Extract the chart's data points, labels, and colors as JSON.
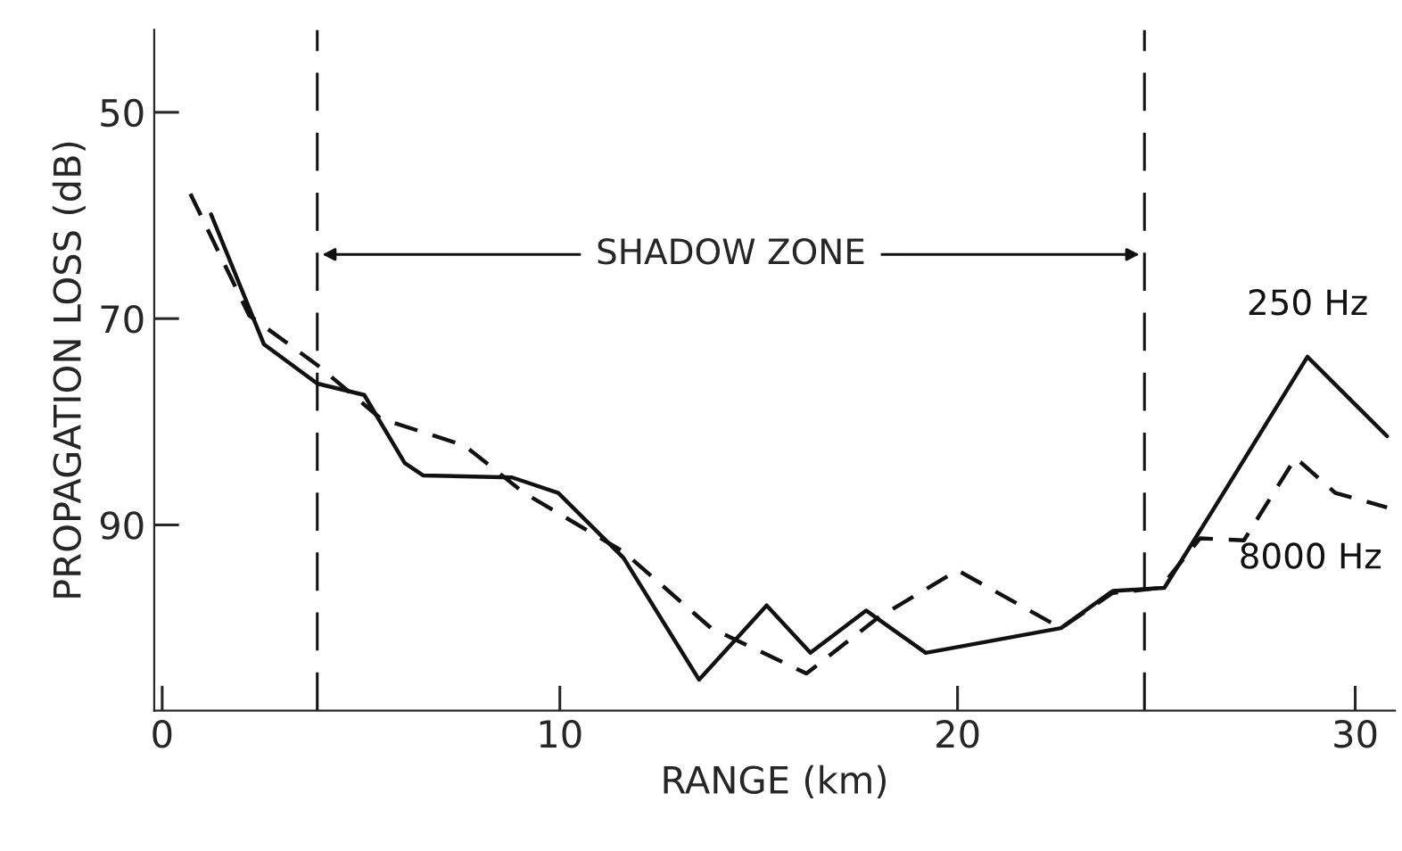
{
  "chart_data": {
    "type": "line",
    "xlabel": "RANGE (km)",
    "ylabel": "PROPAGATION LOSS (dB)",
    "xlim": [
      -0.2,
      31
    ],
    "xticks": [
      0,
      10,
      20,
      30
    ],
    "ylim": [
      108,
      42
    ],
    "yticks": [
      50,
      70,
      90
    ],
    "grid": false,
    "legend": false,
    "marker": "none",
    "series": [
      {
        "name": "250 Hz",
        "color": "#111111",
        "line_style": "solid",
        "x": [
          1.23,
          2.56,
          3.9,
          5.08,
          6.1,
          6.56,
          8.8,
          9.96,
          11.6,
          13.5,
          15.2,
          16.3,
          17.7,
          19.2,
          22.6,
          23.9,
          25.2,
          26.4,
          28.8,
          30.8
        ],
        "values": [
          59.9,
          72.5,
          76.3,
          77.4,
          84.0,
          85.2,
          85.4,
          86.9,
          93.2,
          105.0,
          97.8,
          102.4,
          98.3,
          102.4,
          100.0,
          96.4,
          96.1,
          88.7,
          73.7,
          81.4
        ]
      },
      {
        "name": "8000 Hz",
        "color": "#111111",
        "line_style": "dashed",
        "x": [
          0.71,
          2.19,
          3.9,
          5.5,
          7.6,
          9.1,
          11.6,
          13.8,
          16.2,
          18.0,
          20.0,
          22.6,
          23.9,
          25.1,
          26.1,
          27.2,
          28.5,
          29.5,
          30.8
        ],
        "values": [
          57.9,
          69.7,
          74.5,
          79.7,
          82.3,
          86.9,
          92.6,
          100.0,
          104.4,
          99.0,
          94.4,
          100.0,
          96.6,
          96.1,
          91.3,
          91.5,
          83.5,
          86.9,
          88.3
        ]
      }
    ],
    "ref_lines": [
      {
        "axis": "x",
        "value": 3.9,
        "line_style": "dashed"
      },
      {
        "axis": "x",
        "value": 24.7,
        "line_style": "dashed"
      }
    ],
    "annotations": [
      "SHADOW ZONE"
    ]
  }
}
